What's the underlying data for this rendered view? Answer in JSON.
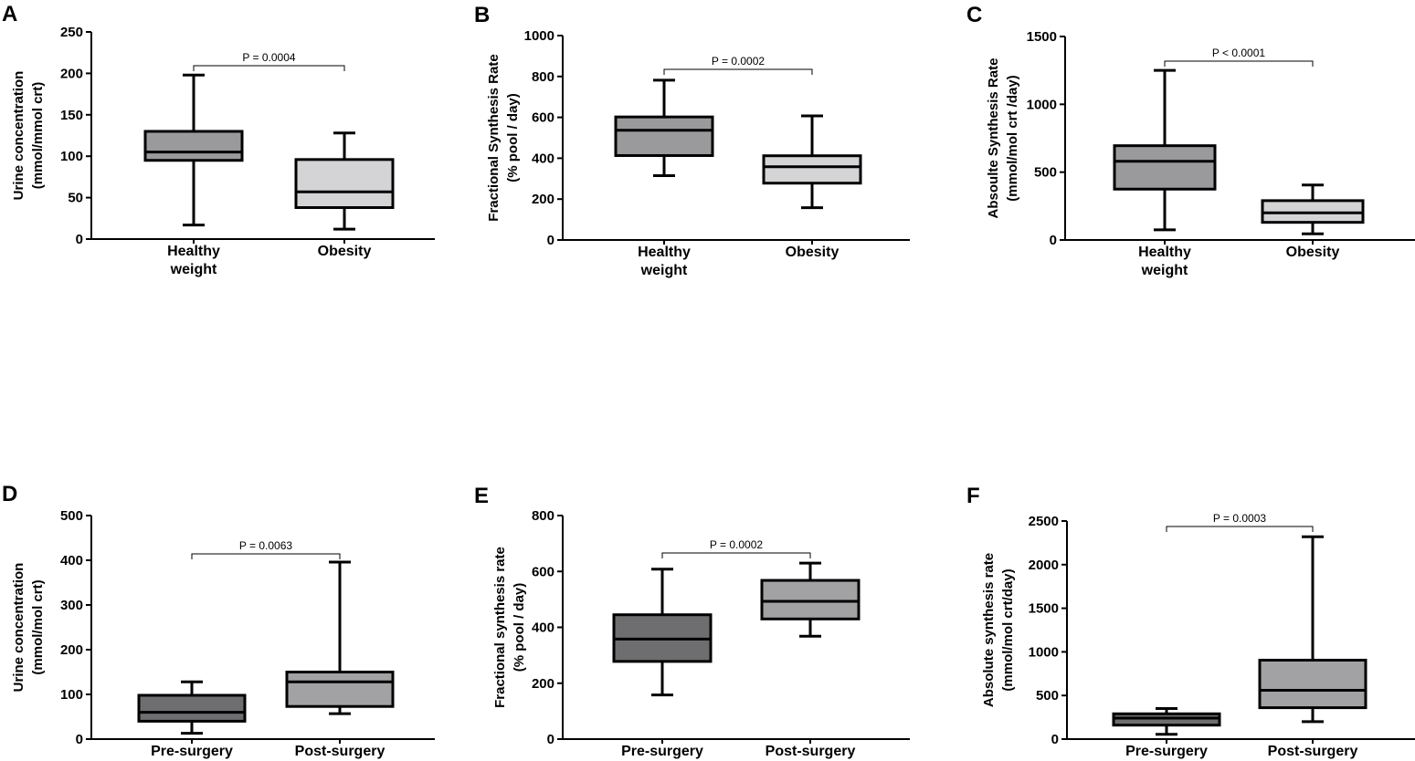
{
  "chart_data": [
    {
      "panel": "A",
      "type": "box",
      "ylabel_lines": [
        "Urine concentration",
        "(mmol/mmol crt)"
      ],
      "ylim": [
        0,
        250
      ],
      "yticks": [
        0,
        50,
        100,
        150,
        200,
        250
      ],
      "p_value": "P = 0.0004",
      "groups": [
        {
          "label_lines": [
            "Healthy",
            "weight"
          ],
          "fill": "#9a9a9d",
          "min": 17,
          "q1": 95,
          "median": 105,
          "q3": 130,
          "max": 198
        },
        {
          "label_lines": [
            "Obesity"
          ],
          "fill": "#d4d4d6",
          "min": 12,
          "q1": 38,
          "median": 57,
          "q3": 96,
          "max": 128
        }
      ]
    },
    {
      "panel": "B",
      "type": "box",
      "ylabel_lines": [
        "Fractional Synthesis Rate",
        "(% pool / day)"
      ],
      "ylim": [
        0,
        1000
      ],
      "yticks": [
        0,
        200,
        400,
        600,
        800,
        1000
      ],
      "p_value": "P = 0.0002",
      "groups": [
        {
          "label_lines": [
            "Healthy",
            "weight"
          ],
          "fill": "#9a9a9d",
          "min": 315,
          "q1": 413,
          "median": 537,
          "q3": 602,
          "max": 782
        },
        {
          "label_lines": [
            "Obesity"
          ],
          "fill": "#d4d4d6",
          "min": 158,
          "q1": 278,
          "median": 358,
          "q3": 412,
          "max": 607
        }
      ]
    },
    {
      "panel": "C",
      "type": "box",
      "ylabel_lines": [
        "Absoulte Synthesis Rate",
        "(mmol/mol crt /day)"
      ],
      "ylim": [
        0,
        1500
      ],
      "yticks": [
        0,
        500,
        1000,
        1500
      ],
      "p_value": "P < 0.0001",
      "groups": [
        {
          "label_lines": [
            "Healthy",
            "weight"
          ],
          "fill": "#9a9a9d",
          "min": 75,
          "q1": 375,
          "median": 580,
          "q3": 695,
          "max": 1250
        },
        {
          "label_lines": [
            "Obesity"
          ],
          "fill": "#d4d4d6",
          "min": 45,
          "q1": 130,
          "median": 200,
          "q3": 290,
          "max": 405
        }
      ]
    },
    {
      "panel": "D",
      "type": "box",
      "ylabel_lines": [
        "Urine concentration",
        "(mmol/mol crt)"
      ],
      "ylim": [
        0,
        500
      ],
      "yticks": [
        0,
        100,
        200,
        300,
        400,
        500
      ],
      "p_value": "P = 0.0063",
      "groups": [
        {
          "label_lines": [
            "Pre-surgery"
          ],
          "fill": "#6e6e70",
          "min": 13,
          "q1": 40,
          "median": 60,
          "q3": 98,
          "max": 128
        },
        {
          "label_lines": [
            "Post-surgery"
          ],
          "fill": "#a2a2a5",
          "min": 57,
          "q1": 73,
          "median": 128,
          "q3": 150,
          "max": 396
        }
      ]
    },
    {
      "panel": "E",
      "type": "box",
      "ylabel_lines": [
        "Fractional synthesis rate",
        "(% pool / day)"
      ],
      "ylim": [
        0,
        800
      ],
      "yticks": [
        0,
        200,
        400,
        600,
        800
      ],
      "p_value": "P = 0.0002",
      "groups": [
        {
          "label_lines": [
            "Pre-surgery"
          ],
          "fill": "#6e6e70",
          "min": 158,
          "q1": 278,
          "median": 358,
          "q3": 445,
          "max": 608
        },
        {
          "label_lines": [
            "Post-surgery"
          ],
          "fill": "#a2a2a5",
          "min": 368,
          "q1": 430,
          "median": 493,
          "q3": 568,
          "max": 630
        }
      ]
    },
    {
      "panel": "F",
      "type": "box",
      "ylabel_lines": [
        "Absolute synthesis rate",
        "(mmol/mol crt/day)"
      ],
      "ylim": [
        0,
        2500
      ],
      "yticks": [
        0,
        500,
        1000,
        1500,
        2000,
        2500
      ],
      "p_value": "P = 0.0003",
      "groups": [
        {
          "label_lines": [
            "Pre-surgery"
          ],
          "fill": "#6e6e70",
          "min": 55,
          "q1": 160,
          "median": 240,
          "q3": 290,
          "max": 350
        },
        {
          "label_lines": [
            "Post-surgery"
          ],
          "fill": "#a2a2a5",
          "min": 200,
          "q1": 360,
          "median": 560,
          "q3": 905,
          "max": 2320
        }
      ]
    }
  ]
}
